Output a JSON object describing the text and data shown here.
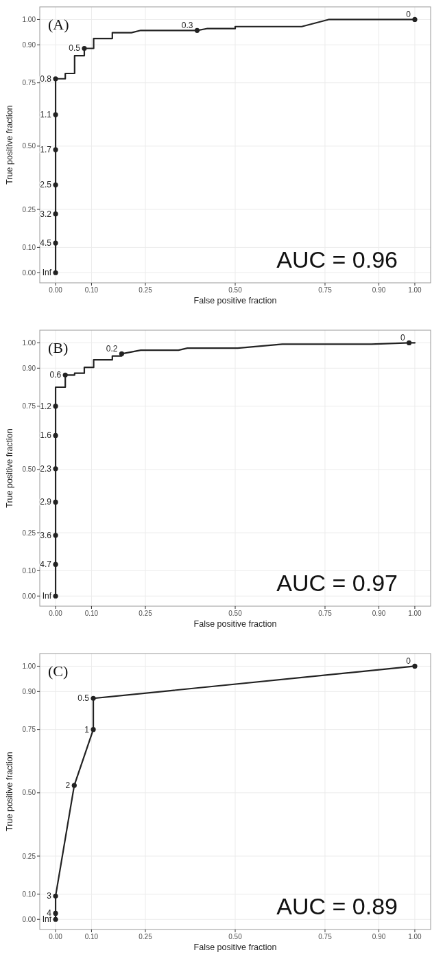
{
  "chart_data": [
    {
      "type": "line",
      "xlabel": "False positive fraction",
      "ylabel": "True positive fraction",
      "xlim": [
        -0.044,
        1.044
      ],
      "ylim": [
        -0.04,
        1.05
      ],
      "xticks": [
        {
          "value": 0,
          "label": "0.00"
        },
        {
          "value": 0.1,
          "label": "0.10"
        },
        {
          "value": 0.25,
          "label": "0.25"
        },
        {
          "value": 0.5,
          "label": "0.50"
        },
        {
          "value": 0.75,
          "label": "0.75"
        },
        {
          "value": 0.9,
          "label": "0.90"
        },
        {
          "value": 1,
          "label": "1.00"
        }
      ],
      "yticks": [
        {
          "value": 0,
          "label": "0.00"
        },
        {
          "value": 0.1,
          "label": "0.10"
        },
        {
          "value": 0.25,
          "label": "0.25"
        },
        {
          "value": 0.5,
          "label": "0.50"
        },
        {
          "value": 0.75,
          "label": "0.75"
        },
        {
          "value": 0.9,
          "label": "0.90"
        },
        {
          "value": 1,
          "label": "1.00"
        }
      ],
      "grid": true,
      "series": [
        {
          "type": "line",
          "color": "#222222",
          "x": [
            0,
            0,
            0.027,
            0.027,
            0.053,
            0.053,
            0.08,
            0.08,
            0.106,
            0.106,
            0.158,
            0.158,
            0.211,
            0.237,
            0.394,
            0.421,
            0.5,
            0.5,
            0.685,
            0.76,
            1
          ],
          "values": [
            0,
            0.766,
            0.766,
            0.787,
            0.787,
            0.857,
            0.857,
            0.886,
            0.886,
            0.925,
            0.925,
            0.948,
            0.948,
            0.957,
            0.957,
            0.964,
            0.964,
            0.972,
            0.972,
            1,
            1
          ]
        },
        {
          "type": "scatter",
          "color": "#222222",
          "marker": "circle",
          "x": [
            0,
            0,
            0,
            0,
            0,
            0,
            0,
            0.08,
            0.394,
            1
          ],
          "values": [
            0,
            0.117,
            0.232,
            0.347,
            0.486,
            0.624,
            0.766,
            0.886,
            0.957,
            1
          ]
        }
      ],
      "annotations": [
        "(A)",
        "AUC = 0.96",
        {
          "text": "Inf",
          "x": 0,
          "y": 0
        },
        {
          "text": "4.5",
          "x": 0,
          "y": 0.117
        },
        {
          "text": "3.2",
          "x": 0,
          "y": 0.232
        },
        {
          "text": "2.5",
          "x": 0,
          "y": 0.347
        },
        {
          "text": "1.7",
          "x": 0,
          "y": 0.486
        },
        {
          "text": "1.1",
          "x": 0,
          "y": 0.624
        },
        {
          "text": "0.8",
          "x": 0,
          "y": 0.766
        },
        {
          "text": "0.5",
          "x": 0.08,
          "y": 0.886
        },
        {
          "text": "0.3",
          "x": 0.394,
          "y": 0.957
        },
        {
          "text": "0",
          "x": 1,
          "y": 1
        }
      ]
    },
    {
      "type": "line",
      "xlabel": "False positive fraction",
      "ylabel": "True positive fraction",
      "xlim": [
        -0.044,
        1.044
      ],
      "ylim": [
        -0.04,
        1.05
      ],
      "xticks": [
        {
          "value": 0,
          "label": "0.00"
        },
        {
          "value": 0.1,
          "label": "0.10"
        },
        {
          "value": 0.25,
          "label": "0.25"
        },
        {
          "value": 0.5,
          "label": "0.50"
        },
        {
          "value": 0.75,
          "label": "0.75"
        },
        {
          "value": 0.9,
          "label": "0.90"
        },
        {
          "value": 1,
          "label": "1.00"
        }
      ],
      "yticks": [
        {
          "value": 0,
          "label": "0.00"
        },
        {
          "value": 0.1,
          "label": "0.10"
        },
        {
          "value": 0.25,
          "label": "0.25"
        },
        {
          "value": 0.5,
          "label": "0.50"
        },
        {
          "value": 0.75,
          "label": "0.75"
        },
        {
          "value": 0.9,
          "label": "0.90"
        },
        {
          "value": 1,
          "label": "1.00"
        }
      ],
      "grid": true,
      "series": [
        {
          "type": "line",
          "color": "#222222",
          "x": [
            0,
            0,
            0.027,
            0.027,
            0.053,
            0.053,
            0.08,
            0.08,
            0.106,
            0.106,
            0.158,
            0.158,
            0.184,
            0.184,
            0.237,
            0.342,
            0.367,
            0.507,
            0.631,
            0.879,
            0.984,
            1
          ],
          "values": [
            0,
            0.825,
            0.825,
            0.873,
            0.873,
            0.88,
            0.88,
            0.903,
            0.903,
            0.933,
            0.933,
            0.948,
            0.948,
            0.957,
            0.971,
            0.971,
            0.979,
            0.979,
            0.995,
            0.995,
            1,
            1
          ]
        },
        {
          "type": "scatter",
          "color": "#222222",
          "marker": "circle",
          "x": [
            0,
            0,
            0,
            0,
            0,
            0,
            0,
            0.027,
            0.184,
            0.984
          ],
          "values": [
            0,
            0.125,
            0.24,
            0.371,
            0.503,
            0.634,
            0.75,
            0.873,
            0.957,
            1
          ]
        }
      ],
      "annotations": [
        "(B)",
        "AUC = 0.97",
        {
          "text": "Inf",
          "x": 0,
          "y": 0
        },
        {
          "text": "4.7",
          "x": 0,
          "y": 0.125
        },
        {
          "text": "3.6",
          "x": 0,
          "y": 0.24
        },
        {
          "text": "2.9",
          "x": 0,
          "y": 0.371
        },
        {
          "text": "2.3",
          "x": 0,
          "y": 0.503
        },
        {
          "text": "1.6",
          "x": 0,
          "y": 0.634
        },
        {
          "text": "1.2",
          "x": 0,
          "y": 0.75
        },
        {
          "text": "0.6",
          "x": 0.027,
          "y": 0.873
        },
        {
          "text": "0.2",
          "x": 0.184,
          "y": 0.957
        },
        {
          "text": "0",
          "x": 0.984,
          "y": 1
        }
      ]
    },
    {
      "type": "line",
      "xlabel": "False positive fraction",
      "ylabel": "True positive fraction",
      "xlim": [
        -0.044,
        1.044
      ],
      "ylim": [
        -0.04,
        1.05
      ],
      "xticks": [
        {
          "value": 0,
          "label": "0.00"
        },
        {
          "value": 0.1,
          "label": "0.10"
        },
        {
          "value": 0.25,
          "label": "0.25"
        },
        {
          "value": 0.5,
          "label": "0.50"
        },
        {
          "value": 0.75,
          "label": "0.75"
        },
        {
          "value": 0.9,
          "label": "0.90"
        },
        {
          "value": 1,
          "label": "1.00"
        }
      ],
      "yticks": [
        {
          "value": 0,
          "label": "0.00"
        },
        {
          "value": 0.1,
          "label": "0.10"
        },
        {
          "value": 0.25,
          "label": "0.25"
        },
        {
          "value": 0.5,
          "label": "0.50"
        },
        {
          "value": 0.75,
          "label": "0.75"
        },
        {
          "value": 0.9,
          "label": "0.90"
        },
        {
          "value": 1,
          "label": "1.00"
        }
      ],
      "grid": true,
      "series": [
        {
          "type": "line",
          "color": "#222222",
          "x": [
            0,
            0,
            0,
            0.052,
            0.105,
            0.105,
            1
          ],
          "values": [
            0,
            0.024,
            0.092,
            0.529,
            0.75,
            0.873,
            1
          ]
        },
        {
          "type": "scatter",
          "color": "#222222",
          "marker": "circle",
          "x": [
            0,
            0,
            0,
            0.052,
            0.105,
            0.105,
            1
          ],
          "values": [
            0,
            0.024,
            0.092,
            0.529,
            0.75,
            0.873,
            1
          ]
        }
      ],
      "annotations": [
        "(C)",
        "AUC = 0.89",
        {
          "text": "Inf",
          "x": 0,
          "y": 0
        },
        {
          "text": "4",
          "x": 0,
          "y": 0.024
        },
        {
          "text": "3",
          "x": 0,
          "y": 0.092
        },
        {
          "text": "2",
          "x": 0.052,
          "y": 0.529
        },
        {
          "text": "1",
          "x": 0.105,
          "y": 0.75
        },
        {
          "text": "0.5",
          "x": 0.105,
          "y": 0.873
        },
        {
          "text": "0",
          "x": 1,
          "y": 1
        }
      ]
    }
  ]
}
